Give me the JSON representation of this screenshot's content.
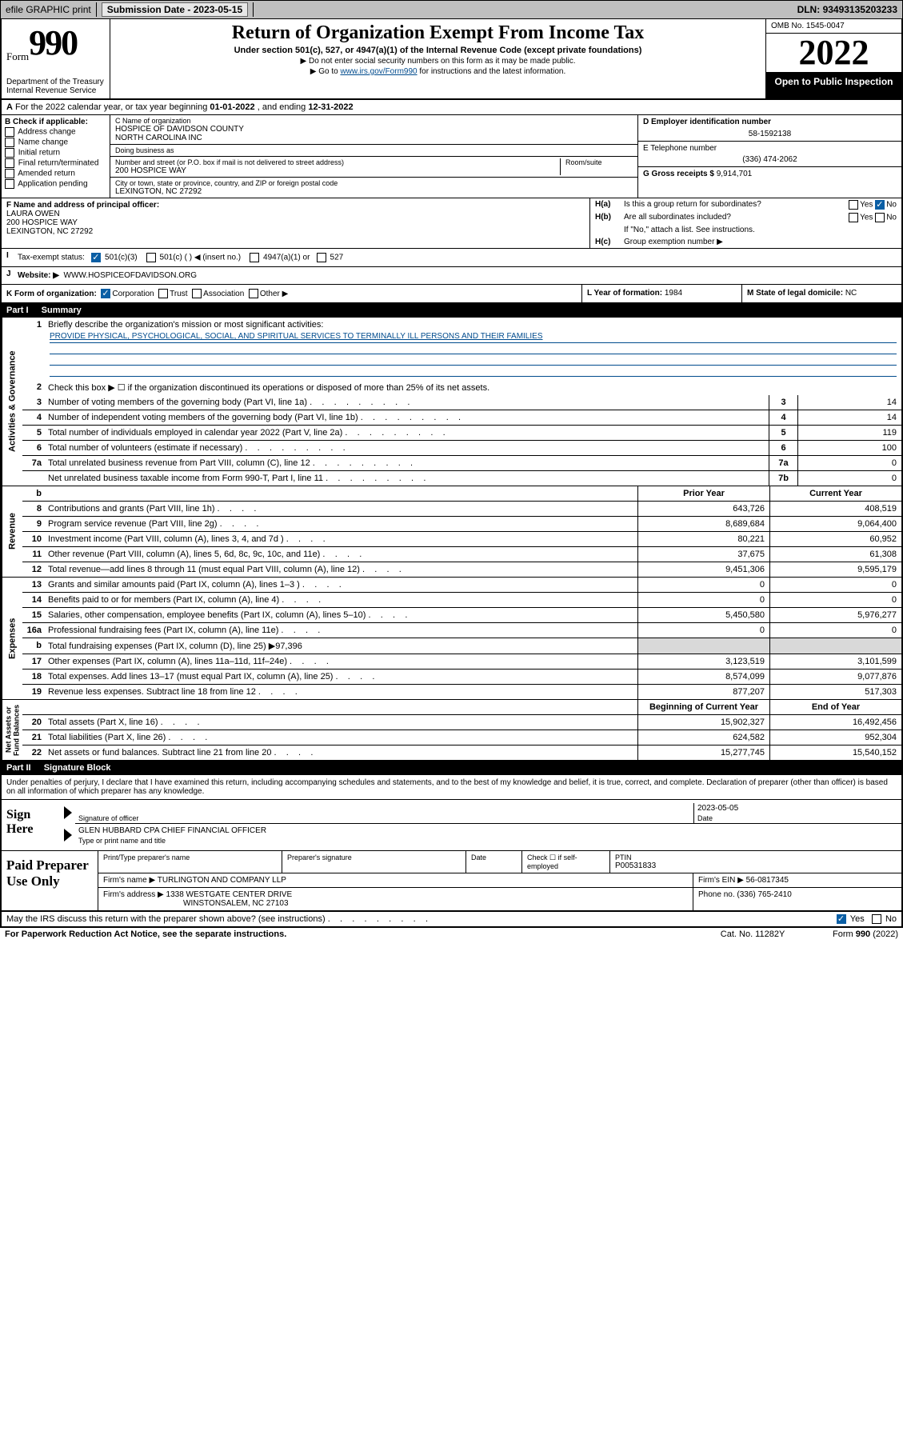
{
  "topbar": {
    "efile": "efile GRAPHIC print",
    "subdate_label": "Submission Date - ",
    "subdate": "2023-05-15",
    "dln_label": "DLN: ",
    "dln": "93493135203233"
  },
  "header": {
    "form_label": "Form",
    "form_number": "990",
    "title": "Return of Organization Exempt From Income Tax",
    "subtitle": "Under section 501(c), 527, or 4947(a)(1) of the Internal Revenue Code (except private foundations)",
    "line1": "▶ Do not enter social security numbers on this form as it may be made public.",
    "line2_pre": "▶ Go to ",
    "line2_link": "www.irs.gov/Form990",
    "line2_post": " for instructions and the latest information.",
    "dept": "Department of the Treasury\nInternal Revenue Service",
    "omb": "OMB No. 1545-0047",
    "year": "2022",
    "open": "Open to Public Inspection"
  },
  "rowA": {
    "text_pre": "For the 2022 calendar year, or tax year beginning ",
    "begin": "01-01-2022",
    "mid": " , and ending ",
    "end": "12-31-2022",
    "lab": "A"
  },
  "colB": {
    "hd": "B Check if applicable:",
    "opts": [
      "Address change",
      "Name change",
      "Initial return",
      "Final return/terminated",
      "Amended return",
      "Application pending"
    ]
  },
  "colC": {
    "name_lbl": "C Name of organization",
    "name": "HOSPICE OF DAVIDSON COUNTY\nNORTH CAROLINA INC",
    "dba_lbl": "Doing business as",
    "dba": "",
    "addr_lbl": "Number and street (or P.O. box if mail is not delivered to street address)",
    "room_lbl": "Room/suite",
    "addr": "200 HOSPICE WAY",
    "city_lbl": "City or town, state or province, country, and ZIP or foreign postal code",
    "city": "LEXINGTON, NC  27292"
  },
  "colDE": {
    "d_lbl": "D Employer identification number",
    "d_val": "58-1592138",
    "e_lbl": "E Telephone number",
    "e_val": "(336) 474-2062",
    "g_lbl": "G Gross receipts $ ",
    "g_val": "9,914,701"
  },
  "rowF": {
    "lbl": "F Name and address of principal officer:",
    "name": "LAURA OWEN",
    "addr1": "200 HOSPICE WAY",
    "addr2": "LEXINGTON, NC  27292"
  },
  "rowH": {
    "ha": "Is this a group return for subordinates?",
    "hb": "Are all subordinates included?",
    "hb_note": "If \"No,\" attach a list. See instructions.",
    "hc": "Group exemption number ▶",
    "yes": "Yes",
    "no": "No"
  },
  "rowI": {
    "lbl": "Tax-exempt status:",
    "opts": [
      "501(c)(3)",
      "501(c) (   ) ◀ (insert no.)",
      "4947(a)(1) or",
      "527"
    ]
  },
  "rowJ": {
    "lbl": "Website: ▶",
    "val": "WWW.HOSPICEOFDAVIDSON.ORG"
  },
  "rowK": {
    "lbl": "K Form of organization:",
    "opts": [
      "Corporation",
      "Trust",
      "Association",
      "Other ▶"
    ]
  },
  "rowL": {
    "lbl": "L Year of formation: ",
    "val": "1984"
  },
  "rowM": {
    "lbl": "M State of legal domicile: ",
    "val": "NC"
  },
  "part1": {
    "pn": "Part I",
    "pt": "Summary"
  },
  "summary": {
    "q1": "Briefly describe the organization's mission or most significant activities:",
    "mission": "PROVIDE PHYSICAL, PSYCHOLOGICAL, SOCIAL, AND SPIRITUAL SERVICES TO TERMINALLY ILL PERSONS AND THEIR FAMILIES",
    "q2": "Check this box ▶ ☐  if the organization discontinued its operations or disposed of more than 25% of its net assets.",
    "rows_ag": [
      {
        "n": "3",
        "t": "Number of voting members of the governing body (Part VI, line 1a)",
        "box": "3",
        "v": "14"
      },
      {
        "n": "4",
        "t": "Number of independent voting members of the governing body (Part VI, line 1b)",
        "box": "4",
        "v": "14"
      },
      {
        "n": "5",
        "t": "Total number of individuals employed in calendar year 2022 (Part V, line 2a)",
        "box": "5",
        "v": "119"
      },
      {
        "n": "6",
        "t": "Total number of volunteers (estimate if necessary)",
        "box": "6",
        "v": "100"
      },
      {
        "n": "7a",
        "t": "Total unrelated business revenue from Part VIII, column (C), line 12",
        "box": "7a",
        "v": "0"
      },
      {
        "n": "",
        "t": "Net unrelated business taxable income from Form 990-T, Part I, line 11",
        "box": "7b",
        "v": "0"
      }
    ],
    "col_hdrs": {
      "prior": "Prior Year",
      "current": "Current Year"
    },
    "revenue": [
      {
        "n": "8",
        "t": "Contributions and grants (Part VIII, line 1h)",
        "p": "643,726",
        "c": "408,519"
      },
      {
        "n": "9",
        "t": "Program service revenue (Part VIII, line 2g)",
        "p": "8,689,684",
        "c": "9,064,400"
      },
      {
        "n": "10",
        "t": "Investment income (Part VIII, column (A), lines 3, 4, and 7d )",
        "p": "80,221",
        "c": "60,952"
      },
      {
        "n": "11",
        "t": "Other revenue (Part VIII, column (A), lines 5, 6d, 8c, 9c, 10c, and 11e)",
        "p": "37,675",
        "c": "61,308"
      },
      {
        "n": "12",
        "t": "Total revenue—add lines 8 through 11 (must equal Part VIII, column (A), line 12)",
        "p": "9,451,306",
        "c": "9,595,179"
      }
    ],
    "expenses": [
      {
        "n": "13",
        "t": "Grants and similar amounts paid (Part IX, column (A), lines 1–3 )",
        "p": "0",
        "c": "0"
      },
      {
        "n": "14",
        "t": "Benefits paid to or for members (Part IX, column (A), line 4)",
        "p": "0",
        "c": "0"
      },
      {
        "n": "15",
        "t": "Salaries, other compensation, employee benefits (Part IX, column (A), lines 5–10)",
        "p": "5,450,580",
        "c": "5,976,277"
      },
      {
        "n": "16a",
        "t": "Professional fundraising fees (Part IX, column (A), line 11e)",
        "p": "0",
        "c": "0"
      },
      {
        "n": "b",
        "t": "Total fundraising expenses (Part IX, column (D), line 25) ▶97,396",
        "p": "",
        "c": "",
        "grey": true
      },
      {
        "n": "17",
        "t": "Other expenses (Part IX, column (A), lines 11a–11d, 11f–24e)",
        "p": "3,123,519",
        "c": "3,101,599"
      },
      {
        "n": "18",
        "t": "Total expenses. Add lines 13–17 (must equal Part IX, column (A), line 25)",
        "p": "8,574,099",
        "c": "9,077,876"
      },
      {
        "n": "19",
        "t": "Revenue less expenses. Subtract line 18 from line 12",
        "p": "877,207",
        "c": "517,303"
      }
    ],
    "na_hdrs": {
      "prior": "Beginning of Current Year",
      "current": "End of Year"
    },
    "netassets": [
      {
        "n": "20",
        "t": "Total assets (Part X, line 16)",
        "p": "15,902,327",
        "c": "16,492,456"
      },
      {
        "n": "21",
        "t": "Total liabilities (Part X, line 26)",
        "p": "624,582",
        "c": "952,304"
      },
      {
        "n": "22",
        "t": "Net assets or fund balances. Subtract line 21 from line 20",
        "p": "15,277,745",
        "c": "15,540,152"
      }
    ],
    "side_ag": "Activities & Governance",
    "side_rev": "Revenue",
    "side_exp": "Expenses",
    "side_na": "Net Assets or\nFund Balances"
  },
  "part2": {
    "pn": "Part II",
    "pt": "Signature Block"
  },
  "sig": {
    "intro": "Under penalties of perjury, I declare that I have examined this return, including accompanying schedules and statements, and to the best of my knowledge and belief, it is true, correct, and complete. Declaration of preparer (other than officer) is based on all information of which preparer has any knowledge.",
    "sign_here": "Sign Here",
    "sig_officer_lbl": "Signature of officer",
    "date_lbl": "Date",
    "date": "2023-05-05",
    "officer_name": "GLEN HUBBARD CPA  CHIEF FINANCIAL OFFICER",
    "type_lbl": "Type or print name and title"
  },
  "prep": {
    "title": "Paid Preparer Use Only",
    "h": [
      "Print/Type preparer's name",
      "Preparer's signature",
      "Date"
    ],
    "check_lbl": "Check ☐ if self-employed",
    "ptin_lbl": "PTIN",
    "ptin": "P00531833",
    "firm_lbl": "Firm's name    ▶",
    "firm": "TURLINGTON AND COMPANY LLP",
    "ein_lbl": "Firm's EIN ▶",
    "ein": "56-0817345",
    "addr_lbl": "Firm's address ▶",
    "addr1": "1338 WESTGATE CENTER DRIVE",
    "addr2": "WINSTONSALEM, NC  27103",
    "phone_lbl": "Phone no. ",
    "phone": "(336) 765-2410"
  },
  "footer": {
    "irs_q": "May the IRS discuss this return with the preparer shown above? (see instructions)",
    "yes": "Yes",
    "no": "No",
    "pra": "For Paperwork Reduction Act Notice, see the separate instructions.",
    "cat": "Cat. No. 11282Y",
    "form": "Form 990 (2022)"
  }
}
